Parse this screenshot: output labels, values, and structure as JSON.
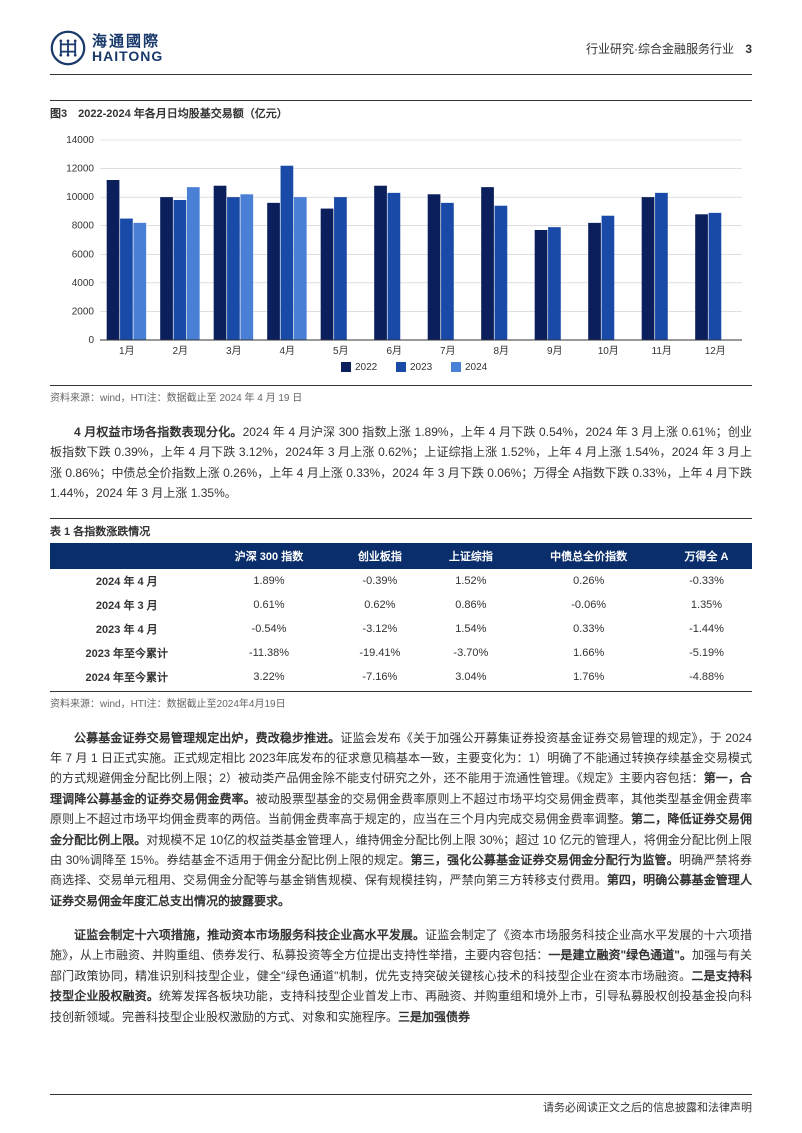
{
  "header": {
    "logo_cn": "海通國際",
    "logo_en": "HAITONG",
    "category": "行业研究·综合金融服务行业",
    "page_number": "3"
  },
  "chart": {
    "type": "bar",
    "title": "图3　2022-2024 年各月日均股基交易额（亿元）",
    "categories": [
      "1月",
      "2月",
      "3月",
      "4月",
      "5月",
      "6月",
      "7月",
      "8月",
      "9月",
      "10月",
      "11月",
      "12月"
    ],
    "series": [
      {
        "name": "2022",
        "color": "#0a1f5c",
        "values": [
          11200,
          10000,
          10800,
          9600,
          9200,
          10800,
          10200,
          10700,
          7700,
          8200,
          10000,
          8800
        ]
      },
      {
        "name": "2023",
        "color": "#1a4aa8",
        "values": [
          8500,
          9800,
          10000,
          12200,
          10000,
          10300,
          9600,
          9400,
          7900,
          8700,
          10300,
          8900
        ]
      },
      {
        "name": "2024",
        "color": "#4a7fd6",
        "values": [
          8200,
          10700,
          10200,
          10000,
          0,
          0,
          0,
          0,
          0,
          0,
          0,
          0
        ]
      }
    ],
    "ylim": [
      0,
      14000
    ],
    "ytick_step": 2000,
    "yticks": [
      0,
      2000,
      4000,
      6000,
      8000,
      10000,
      12000,
      14000
    ],
    "background_color": "#ffffff",
    "grid_color": "#cccccc",
    "bar_group_width": 0.75,
    "axis_fontsize": 10,
    "legend_fontsize": 10,
    "source": "资料来源：wind，HTI注：数据截止至 2024 年 4 月 19 日"
  },
  "paragraph1": {
    "lead": "4 月权益市场各指数表现分化。",
    "text": "2024 年 4 月沪深 300 指数上涨 1.89%，上年 4 月下跌 0.54%，2024 年 3 月上涨 0.61%；创业板指数下跌 0.39%，上年 4 月下跌 3.12%，2024年 3 月上涨 0.62%；上证综指上涨 1.52%，上年 4 月上涨 1.54%，2024 年 3 月上涨 0.86%；中债总全价指数上涨 0.26%，上年 4 月上涨 0.33%，2024 年 3 月下跌 0.06%；万得全 A指数下跌 0.33%，上年 4 月下跌 1.44%，2024 年 3 月上涨 1.35%。"
  },
  "table1": {
    "title": "表 1 各指数涨跌情况",
    "header_bg": "#0a2e6b",
    "header_text_color": "#ffffff",
    "columns": [
      "",
      "沪深 300 指数",
      "创业板指",
      "上证综指",
      "中债总全价指数",
      "万得全 A"
    ],
    "rows": [
      [
        "2024 年 4 月",
        "1.89%",
        "-0.39%",
        "1.52%",
        "0.26%",
        "-0.33%"
      ],
      [
        "2024 年 3 月",
        "0.61%",
        "0.62%",
        "0.86%",
        "-0.06%",
        "1.35%"
      ],
      [
        "2023 年 4 月",
        "-0.54%",
        "-3.12%",
        "1.54%",
        "0.33%",
        "-1.44%"
      ],
      [
        "2023 年至今累计",
        "-11.38%",
        "-19.41%",
        "-3.70%",
        "1.66%",
        "-5.19%"
      ],
      [
        "2024 年至今累计",
        "3.22%",
        "-7.16%",
        "3.04%",
        "1.76%",
        "-4.88%"
      ]
    ],
    "source": "资料来源：wind，HTI注：数据截止至2024年4月19日"
  },
  "paragraph2": {
    "lead": "公募基金证券交易管理规定出炉，费改稳步推进。",
    "text_pre": "证监会发布《关于加强公开募集证券投资基金证券交易管理的规定》，于 2024 年 7 月 1 日正式实施。正式规定相比 2023年底发布的征求意见稿基本一致，主要变化为：1）明确了不能通过转换存续基金交易模式的方式规避佣金分配比例上限；2）被动类产品佣金除不能支付研究之外，还不能用于流通性管理。《规定》主要内容包括：",
    "b1": "第一，合理调降公募基金的证券交易佣金费率。",
    "t1": "被动股票型基金的交易佣金费率原则上不超过市场平均交易佣金费率，其他类型基金佣金费率原则上不超过市场平均佣金费率的两倍。当前佣金费率高于规定的，应当在三个月内完成交易佣金费率调整。",
    "b2": "第二，降低证券交易佣金分配比例上限。",
    "t2": "对规模不足 10亿的权益类基金管理人，维持佣金分配比例上限 30%；超过 10 亿元的管理人，将佣金分配比例上限由 30%调降至 15%。券结基金不适用于佣金分配比例上限的规定。",
    "b3": "第三，强化公募基金证券交易佣金分配行为监管。",
    "t3": "明确严禁将券商选择、交易单元租用、交易佣金分配等与基金销售规模、保有规模挂钩，严禁向第三方转移支付费用。",
    "b4": "第四，明确公募基金管理人证券交易佣金年度汇总支出情况的披露要求。"
  },
  "paragraph3": {
    "lead": "证监会制定十六项措施，推动资本市场服务科技企业高水平发展。",
    "text_pre": "证监会制定了《资本市场服务科技企业高水平发展的十六项措施》，从上市融资、并购重组、债券发行、私募投资等全方位提出支持性举措，主要内容包括：",
    "b1": "一是建立融资\"绿色通道\"。",
    "t1": "加强与有关部门政策协同，精准识别科技型企业，健全\"绿色通道\"机制，优先支持突破关键核心技术的科技型企业在资本市场融资。",
    "b2": "二是支持科技型企业股权融资。",
    "t2": "统筹发挥各板块功能，支持科技型企业首发上市、再融资、并购重组和境外上市，引导私募股权创投基金投向科技创新领域。完善科技型企业股权激励的方式、对象和实施程序。",
    "b3": "三是加强债券"
  },
  "footer": {
    "text": "请务必阅读正文之后的信息披露和法律声明"
  }
}
